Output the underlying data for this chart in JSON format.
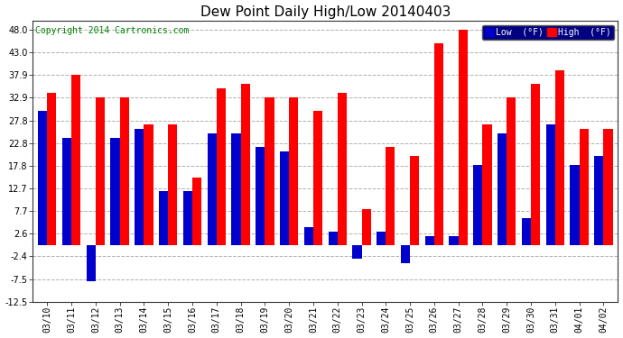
{
  "title": "Dew Point Daily High/Low 20140403",
  "copyright": "Copyright 2014 Cartronics.com",
  "legend_low": "Low  (°F)",
  "legend_high": "High  (°F)",
  "dates": [
    "03/10",
    "03/11",
    "03/12",
    "03/13",
    "03/14",
    "03/15",
    "03/16",
    "03/17",
    "03/18",
    "03/19",
    "03/20",
    "03/21",
    "03/22",
    "03/23",
    "03/24",
    "03/25",
    "03/26",
    "03/27",
    "03/28",
    "03/29",
    "03/30",
    "03/31",
    "04/01",
    "04/02"
  ],
  "high": [
    34.0,
    38.0,
    33.0,
    33.0,
    27.0,
    27.0,
    15.0,
    35.0,
    36.0,
    33.0,
    33.0,
    30.0,
    34.0,
    8.0,
    22.0,
    20.0,
    45.0,
    48.0,
    27.0,
    33.0,
    36.0,
    39.0,
    26.0,
    26.0
  ],
  "low": [
    30.0,
    24.0,
    -8.0,
    24.0,
    26.0,
    12.0,
    12.0,
    25.0,
    25.0,
    22.0,
    21.0,
    4.0,
    3.0,
    -3.0,
    3.0,
    -4.0,
    2.0,
    2.0,
    18.0,
    25.0,
    6.0,
    27.0,
    18.0,
    20.0
  ],
  "ylim": [
    -12.5,
    50.0
  ],
  "yticks": [
    -12.5,
    -7.5,
    -2.4,
    2.6,
    7.7,
    12.7,
    17.8,
    22.8,
    27.8,
    32.9,
    37.9,
    43.0,
    48.0
  ],
  "bar_width": 0.38,
  "high_color": "#ff0000",
  "low_color": "#0000cc",
  "bg_color": "#ffffff",
  "grid_color": "#b0b0b0",
  "title_fontsize": 11,
  "axis_label_fontsize": 7,
  "copyright_fontsize": 7
}
